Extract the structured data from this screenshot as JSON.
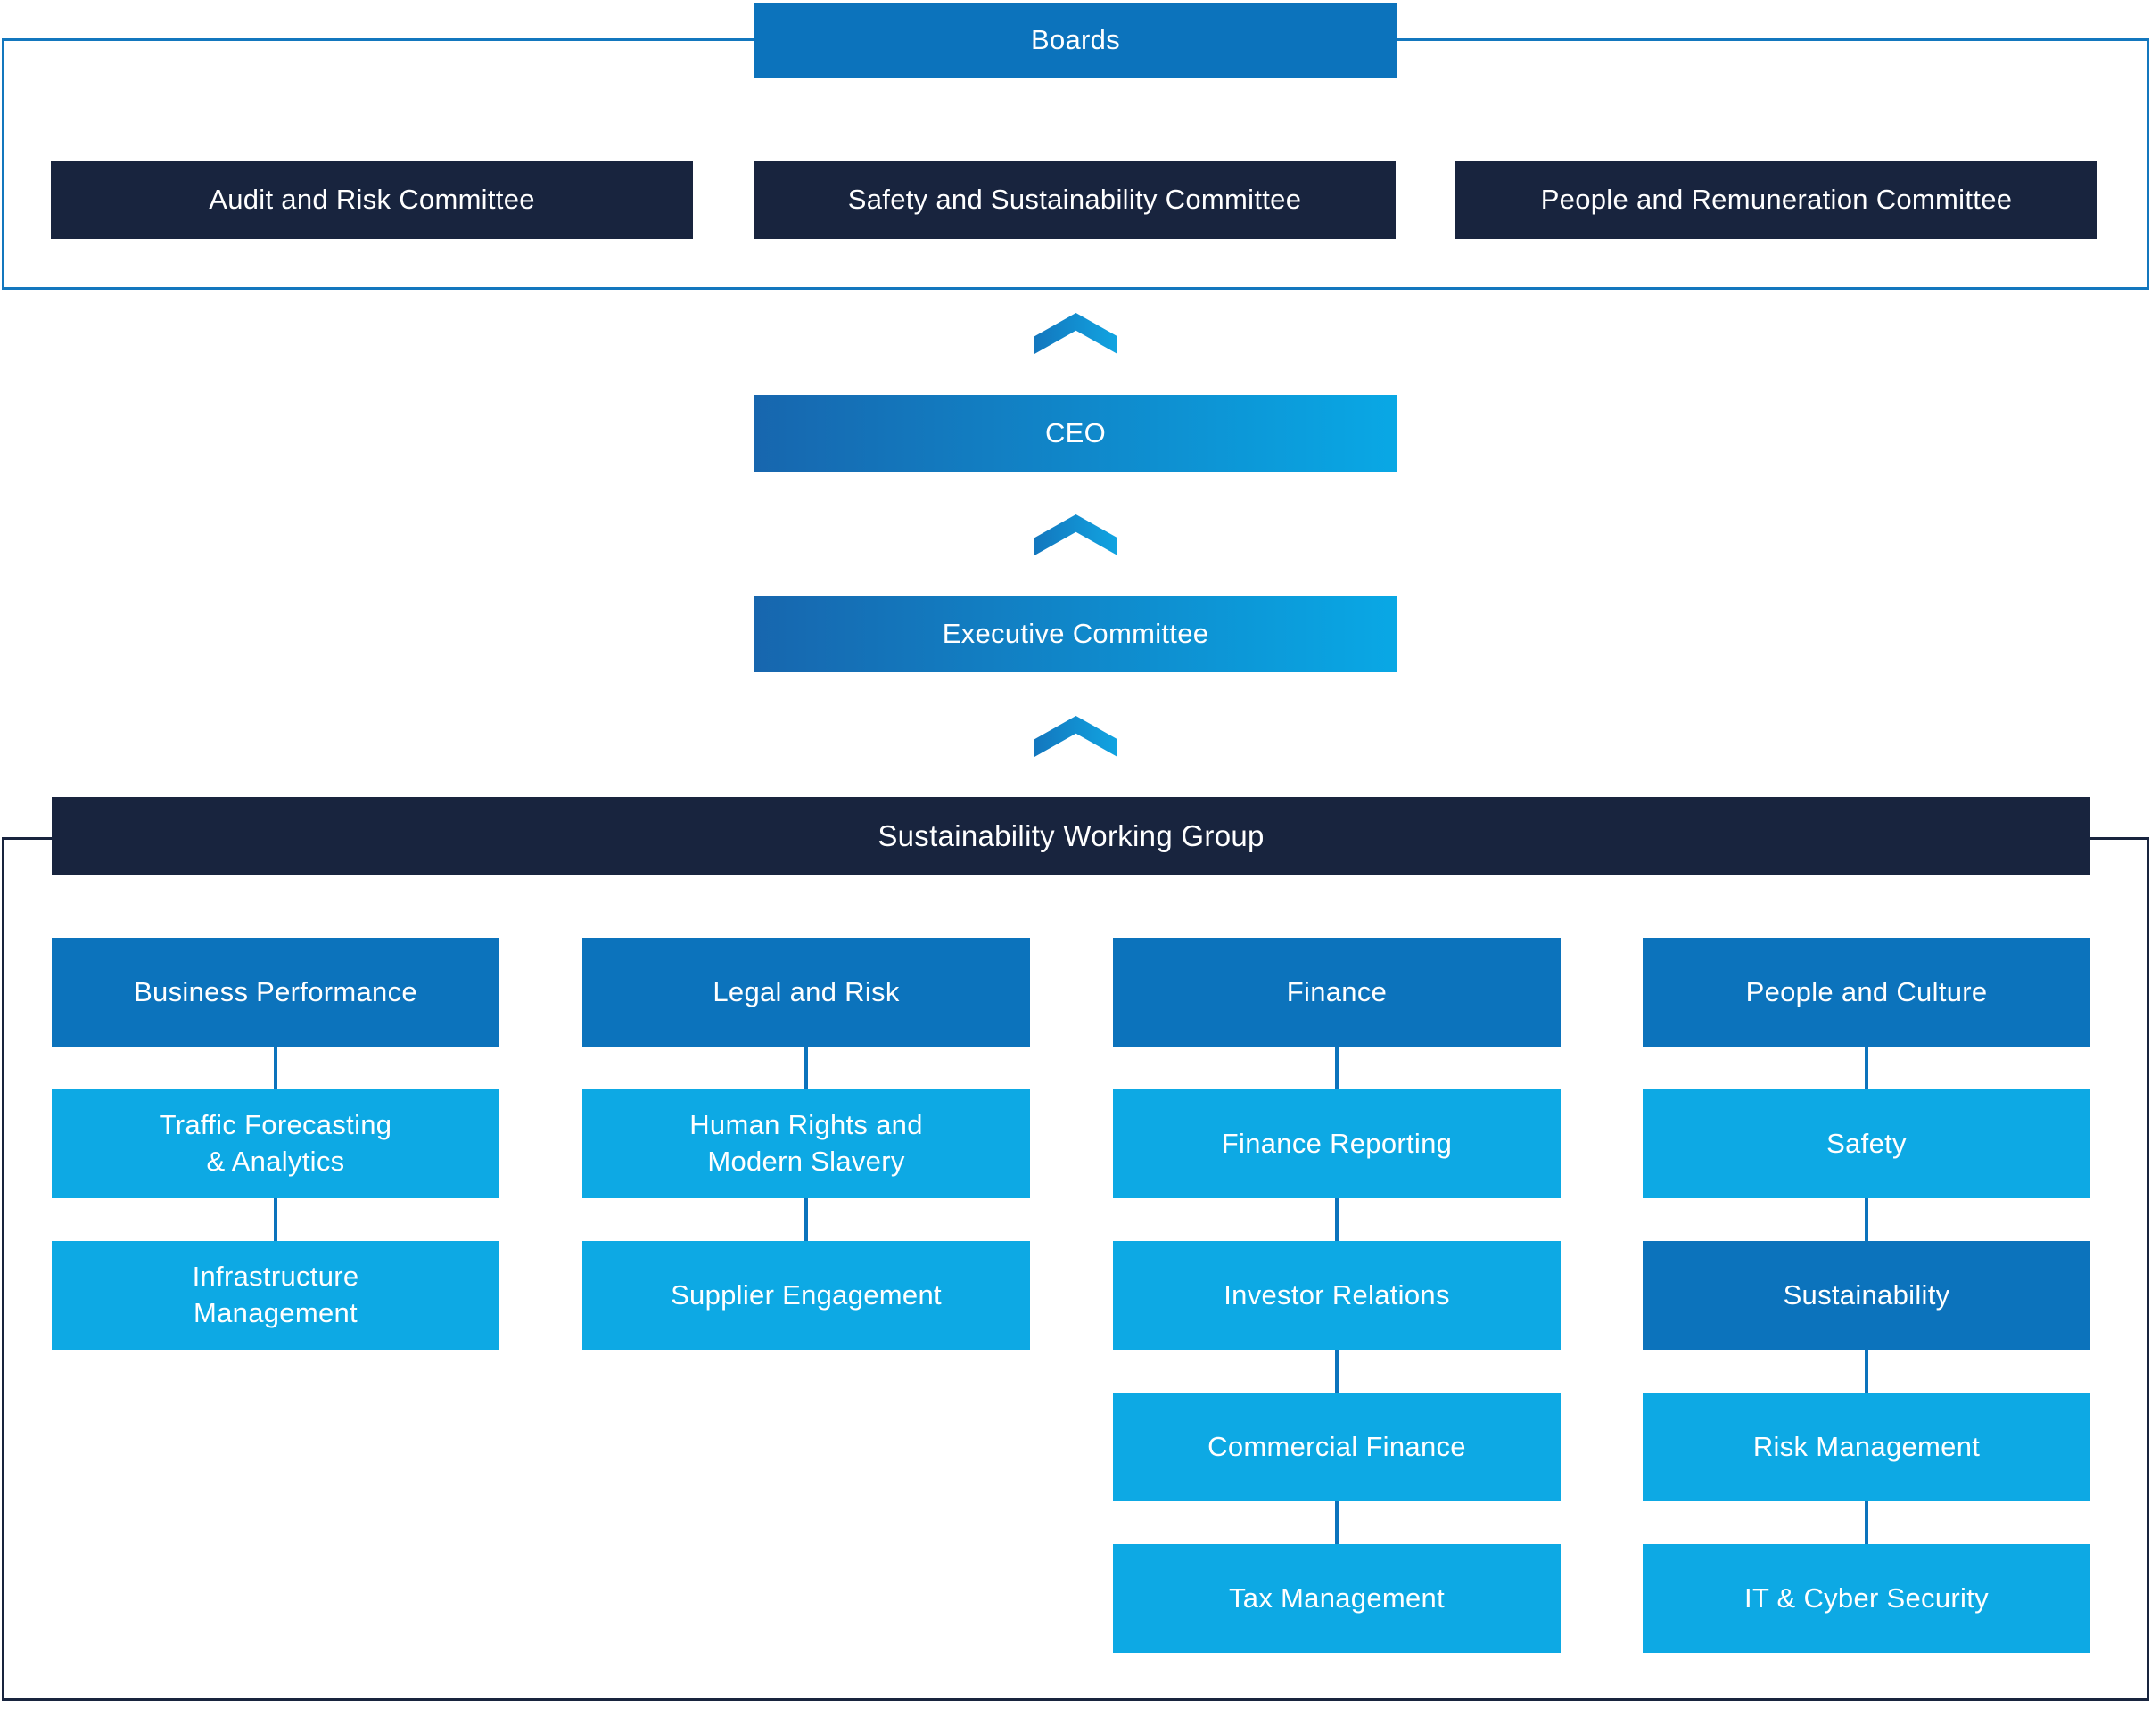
{
  "colors": {
    "navy": "#18243E",
    "brand_blue": "#0C73BC",
    "cyan": "#0DA9E4",
    "border_blue": "#1377BE"
  },
  "boards": {
    "title": "Boards",
    "committees": [
      {
        "label": "Audit and Risk Committee"
      },
      {
        "label": "Safety and Sustainability Committee"
      },
      {
        "label": "People and Remuneration Committee"
      }
    ]
  },
  "flow": {
    "ceo": "CEO",
    "executive_committee": "Executive Committee"
  },
  "swg": {
    "title": "Sustainability Working Group",
    "columns": [
      {
        "header": "Business Performance",
        "items": [
          {
            "label": "Traffic Forecasting\n& Analytics"
          },
          {
            "label": "Infrastructure\nManagement"
          }
        ]
      },
      {
        "header": "Legal and Risk",
        "items": [
          {
            "label": "Human Rights and\nModern Slavery"
          },
          {
            "label": "Supplier Engagement"
          }
        ]
      },
      {
        "header": "Finance",
        "items": [
          {
            "label": "Finance Reporting"
          },
          {
            "label": "Investor Relations"
          },
          {
            "label": "Commercial Finance"
          },
          {
            "label": "Tax Management"
          }
        ]
      },
      {
        "header": "People and Culture",
        "items": [
          {
            "label": "Safety"
          },
          {
            "label": "Sustainability",
            "variant": "highlighted"
          },
          {
            "label": "Risk Management"
          },
          {
            "label": "IT & Cyber Security"
          }
        ]
      }
    ]
  }
}
